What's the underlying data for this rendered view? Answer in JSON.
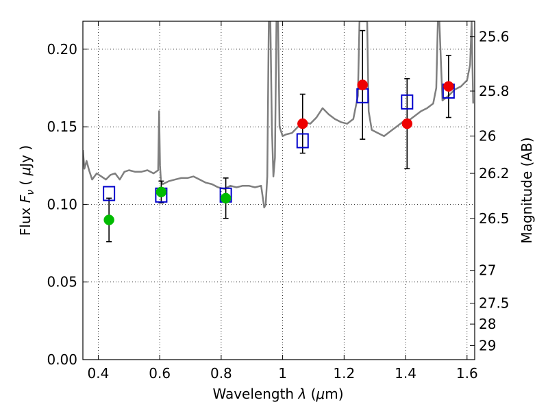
{
  "chart_data": {
    "type": "scatter",
    "xlabel": "Wavelength  λ (μm)",
    "ylabel": "Flux  F_ν  ( μJy )",
    "ylabel_right": "Magnitude (AB)",
    "xlim": [
      0.35,
      1.625
    ],
    "ylim": [
      0.0,
      0.218
    ],
    "grid": true,
    "x_ticks": [
      0.4,
      0.6,
      0.8,
      1.0,
      1.2,
      1.4,
      1.6
    ],
    "x_tick_labels": [
      "0.4",
      "0.6",
      "0.8",
      "1",
      "1.2",
      "1.4",
      "1.6"
    ],
    "y_ticks": [
      0.0,
      0.05,
      0.1,
      0.15,
      0.2
    ],
    "y_tick_labels": [
      "0.00",
      "0.05",
      "0.10",
      "0.15",
      "0.20"
    ],
    "right_ticks": [
      {
        "label": "25.6",
        "flux": 0.208
      },
      {
        "label": "25.8",
        "flux": 0.173
      },
      {
        "label": "26",
        "flux": 0.144
      },
      {
        "label": "26.2",
        "flux": 0.12
      },
      {
        "label": "26.5",
        "flux": 0.091
      },
      {
        "label": "27",
        "flux": 0.0575
      },
      {
        "label": "27.5",
        "flux": 0.0363
      },
      {
        "label": "28",
        "flux": 0.0229
      },
      {
        "label": "29",
        "flux": 0.0091
      }
    ],
    "series": [
      {
        "marker": "circle",
        "color": "#00bb00",
        "points": [
          {
            "x": 0.435,
            "y": 0.09,
            "err": 0.014
          },
          {
            "x": 0.605,
            "y": 0.108,
            "err": 0.007
          },
          {
            "x": 0.815,
            "y": 0.104,
            "err": 0.013
          }
        ]
      },
      {
        "marker": "circle",
        "color": "#ee0000",
        "points": [
          {
            "x": 1.065,
            "y": 0.152,
            "err": 0.019
          },
          {
            "x": 1.26,
            "y": 0.177,
            "err": 0.035
          },
          {
            "x": 1.405,
            "y": 0.152,
            "err": 0.029
          },
          {
            "x": 1.54,
            "y": 0.176,
            "err": 0.02
          }
        ]
      },
      {
        "marker": "open-square",
        "color": "#0000cc",
        "points": [
          {
            "x": 0.435,
            "y": 0.107
          },
          {
            "x": 0.605,
            "y": 0.106
          },
          {
            "x": 0.815,
            "y": 0.106
          },
          {
            "x": 1.065,
            "y": 0.141
          },
          {
            "x": 1.26,
            "y": 0.17
          },
          {
            "x": 1.405,
            "y": 0.166
          },
          {
            "x": 1.54,
            "y": 0.173
          }
        ]
      },
      {
        "marker": "line",
        "color": "#7f7f7f",
        "x": [
          0.35,
          0.355,
          0.362,
          0.37,
          0.38,
          0.395,
          0.41,
          0.425,
          0.44,
          0.455,
          0.47,
          0.485,
          0.5,
          0.52,
          0.54,
          0.56,
          0.58,
          0.595,
          0.598,
          0.601,
          0.604,
          0.61,
          0.63,
          0.65,
          0.67,
          0.69,
          0.71,
          0.73,
          0.75,
          0.77,
          0.79,
          0.81,
          0.83,
          0.85,
          0.87,
          0.89,
          0.91,
          0.93,
          0.94,
          0.945,
          0.95,
          0.955,
          0.96,
          0.965,
          0.97,
          0.975,
          0.98,
          0.985,
          0.99,
          1.0,
          1.01,
          1.03,
          1.05,
          1.07,
          1.09,
          1.11,
          1.13,
          1.15,
          1.17,
          1.19,
          1.21,
          1.23,
          1.245,
          1.25,
          1.255,
          1.27,
          1.275,
          1.28,
          1.29,
          1.31,
          1.33,
          1.35,
          1.37,
          1.39,
          1.41,
          1.43,
          1.45,
          1.47,
          1.49,
          1.5,
          1.505,
          1.51,
          1.52,
          1.54,
          1.56,
          1.58,
          1.6,
          1.61,
          1.615,
          1.62
        ],
        "y": [
          0.135,
          0.123,
          0.128,
          0.122,
          0.116,
          0.12,
          0.118,
          0.116,
          0.119,
          0.12,
          0.116,
          0.121,
          0.122,
          0.121,
          0.121,
          0.122,
          0.12,
          0.122,
          0.16,
          0.125,
          0.115,
          0.113,
          0.115,
          0.116,
          0.117,
          0.117,
          0.118,
          0.116,
          0.114,
          0.113,
          0.111,
          0.11,
          0.112,
          0.111,
          0.112,
          0.112,
          0.111,
          0.112,
          0.098,
          0.1,
          0.118,
          0.218,
          0.218,
          0.15,
          0.118,
          0.13,
          0.218,
          0.218,
          0.15,
          0.144,
          0.145,
          0.146,
          0.15,
          0.153,
          0.152,
          0.156,
          0.162,
          0.158,
          0.155,
          0.153,
          0.152,
          0.155,
          0.17,
          0.218,
          0.218,
          0.218,
          0.218,
          0.16,
          0.148,
          0.146,
          0.144,
          0.147,
          0.15,
          0.153,
          0.154,
          0.157,
          0.16,
          0.162,
          0.165,
          0.175,
          0.218,
          0.218,
          0.167,
          0.17,
          0.174,
          0.176,
          0.18,
          0.19,
          0.218,
          0.165
        ]
      }
    ]
  }
}
